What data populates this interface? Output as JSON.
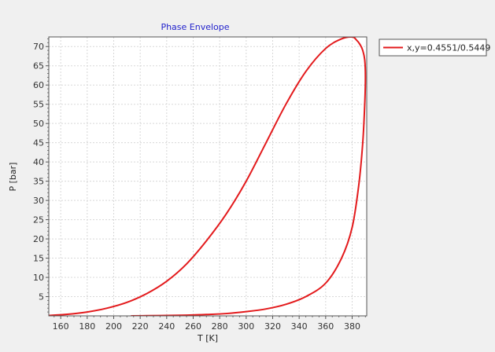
{
  "chart_data": {
    "type": "line",
    "title": "Phase Envelope",
    "xlabel": "T [K]",
    "ylabel": "P [bar]",
    "xlim": [
      151,
      391
    ],
    "ylim": [
      0,
      72.5
    ],
    "x_ticks": [
      160,
      180,
      200,
      220,
      240,
      260,
      280,
      300,
      320,
      340,
      360,
      380
    ],
    "y_ticks": [
      5,
      10,
      15,
      20,
      25,
      30,
      35,
      40,
      45,
      50,
      55,
      60,
      65,
      70
    ],
    "grid": true,
    "legend_position": "top-right outside",
    "series": [
      {
        "name": "x,y=0.4551/0.5449",
        "color": "#e31a1c",
        "x": [
          151,
          165,
          180,
          195,
          210,
          225,
          240,
          255,
          270,
          285,
          300,
          315,
          330,
          345,
          360,
          372,
          380,
          383,
          386,
          388,
          389.5,
          390,
          389.5,
          388,
          385,
          380,
          372,
          360,
          345,
          330,
          315,
          300,
          285,
          270,
          255,
          240,
          225,
          213
        ],
        "y": [
          0.1,
          0.4,
          1.0,
          2.0,
          3.5,
          5.8,
          9.0,
          13.5,
          19.5,
          26.5,
          35.0,
          45.0,
          55.0,
          63.5,
          69.5,
          72.0,
          72.5,
          71.8,
          70.5,
          69.0,
          66.5,
          62.0,
          55.0,
          45.0,
          34.0,
          23.0,
          15.0,
          8.5,
          5.0,
          3.0,
          1.8,
          1.1,
          0.6,
          0.35,
          0.18,
          0.1,
          0.04,
          0.0
        ]
      }
    ]
  }
}
